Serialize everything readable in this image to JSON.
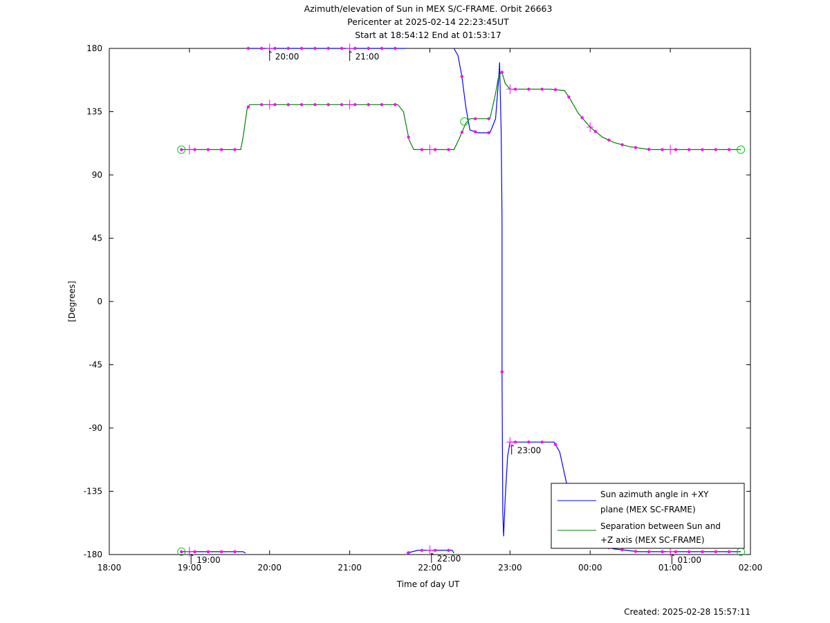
{
  "chart_data": {
    "type": "line",
    "title_lines": [
      "Azimuth/elevation of Sun in MEX S/C-FRAME.  Orbit 26663",
      "Pericenter at 2025-02-14 22:23:45UT",
      "Start at 18:54:12 End at 01:53:17"
    ],
    "xlabel": "Time of day UT",
    "ylabel": "[Degrees]",
    "xlim": [
      18.0,
      26.0
    ],
    "ylim": [
      -180,
      180
    ],
    "x_ticks": [
      18,
      19,
      20,
      21,
      22,
      23,
      24,
      25,
      26
    ],
    "x_tick_labels": [
      "18:00",
      "19:00",
      "20:00",
      "21:00",
      "22:00",
      "23:00",
      "00:00",
      "01:00",
      "02:00"
    ],
    "y_ticks": [
      -180,
      -135,
      -90,
      -45,
      0,
      45,
      90,
      135,
      180
    ],
    "y_tick_labels": [
      "-180",
      "-135",
      "-90",
      "-45",
      "0",
      "45",
      "90",
      "135",
      "180"
    ],
    "legend_position": "bottom-right",
    "series": [
      {
        "name": "Sun azimuth angle in +XY plane (MEX SC-FRAME)",
        "legend_lines": [
          "Sun azimuth angle in +XY",
          "plane (MEX SC-FRAME)"
        ],
        "color": "#0000ff",
        "segments": [
          [
            [
              18.9,
              -178
            ],
            [
              19.0,
              -178
            ],
            [
              19.5,
              -178
            ],
            [
              19.67,
              -178
            ],
            [
              19.7,
              -179
            ]
          ],
          [
            [
              19.72,
              180
            ],
            [
              19.8,
              180
            ],
            [
              20.5,
              180
            ],
            [
              21.5,
              180
            ],
            [
              21.68,
              180
            ],
            [
              21.7,
              180
            ]
          ],
          [
            [
              21.71,
              -179
            ],
            [
              21.85,
              -177
            ],
            [
              22.0,
              -177
            ],
            [
              22.28,
              -177
            ],
            [
              22.3,
              -179
            ]
          ],
          [
            [
              22.3,
              180
            ],
            [
              22.35,
              175
            ],
            [
              22.4,
              160
            ],
            [
              22.45,
              138
            ],
            [
              22.5,
              122
            ],
            [
              22.6,
              120
            ],
            [
              22.75,
              120
            ],
            [
              22.82,
              130
            ],
            [
              22.86,
              160
            ],
            [
              22.87,
              170
            ],
            [
              22.89,
              120
            ],
            [
              22.9,
              60
            ],
            [
              22.9,
              -50
            ],
            [
              22.91,
              -150
            ],
            [
              22.92,
              -167
            ],
            [
              22.94,
              -140
            ],
            [
              22.97,
              -110
            ],
            [
              23.0,
              -100
            ],
            [
              23.2,
              -100
            ],
            [
              23.3,
              -100
            ],
            [
              23.55,
              -100
            ],
            [
              23.62,
              -107
            ],
            [
              23.7,
              -128
            ],
            [
              23.8,
              -152
            ],
            [
              23.9,
              -165
            ],
            [
              24.0,
              -172
            ],
            [
              24.3,
              -176
            ],
            [
              24.6,
              -178
            ],
            [
              25.0,
              -178
            ],
            [
              25.5,
              -178
            ],
            [
              25.88,
              -178
            ]
          ]
        ]
      },
      {
        "name": "Separation between Sun and +Z axis (MEX SC-FRAME)",
        "legend_lines": [
          "Separation between Sun and",
          "+Z axis (MEX SC-FRAME)"
        ],
        "color": "#008000",
        "segments": [
          [
            [
              18.9,
              108
            ],
            [
              19.0,
              108
            ],
            [
              19.2,
              108
            ],
            [
              19.4,
              108
            ],
            [
              19.64,
              108
            ],
            [
              19.67,
              117
            ],
            [
              19.72,
              137
            ],
            [
              19.75,
              140
            ],
            [
              20.0,
              140
            ],
            [
              20.5,
              140
            ],
            [
              21.0,
              140
            ],
            [
              21.6,
              140
            ],
            [
              21.67,
              135
            ],
            [
              21.74,
              115
            ],
            [
              21.8,
              108
            ],
            [
              22.0,
              108
            ],
            [
              22.3,
              108
            ],
            [
              22.36,
              115
            ],
            [
              22.45,
              127
            ],
            [
              22.5,
              130
            ],
            [
              22.75,
              130
            ],
            [
              22.82,
              148
            ],
            [
              22.86,
              161
            ],
            [
              22.9,
              163
            ],
            [
              22.94,
              155
            ],
            [
              23.0,
              151
            ],
            [
              23.2,
              151
            ],
            [
              23.5,
              151
            ],
            [
              23.68,
              150
            ],
            [
              23.75,
              144
            ],
            [
              23.85,
              134
            ],
            [
              24.0,
              124
            ],
            [
              24.15,
              117
            ],
            [
              24.3,
              113
            ],
            [
              24.5,
              110
            ],
            [
              24.75,
              108
            ],
            [
              25.0,
              108
            ],
            [
              25.5,
              108
            ],
            [
              25.88,
              108
            ]
          ]
        ]
      }
    ],
    "hour_marker_labels": [
      {
        "label": "20:00",
        "x": 20.0,
        "y": 180
      },
      {
        "label": "21:00",
        "x": 21.0,
        "y": 180
      },
      {
        "label": "19:00",
        "x": 19.02,
        "y": -178
      },
      {
        "label": "22:00",
        "x": 22.02,
        "y": -177
      },
      {
        "label": "23:00",
        "x": 23.02,
        "y": -100
      },
      {
        "label": "01:00",
        "x": 25.02,
        "y": -178
      }
    ],
    "circle_markers": [
      {
        "x": 18.9,
        "y": 108
      },
      {
        "x": 18.9,
        "y": -178
      },
      {
        "x": 22.43,
        "y": 128
      },
      {
        "x": 25.88,
        "y": 108
      },
      {
        "x": 25.88,
        "y": -178
      }
    ],
    "footer": "Created: 2025-02-28 15:57:11"
  }
}
